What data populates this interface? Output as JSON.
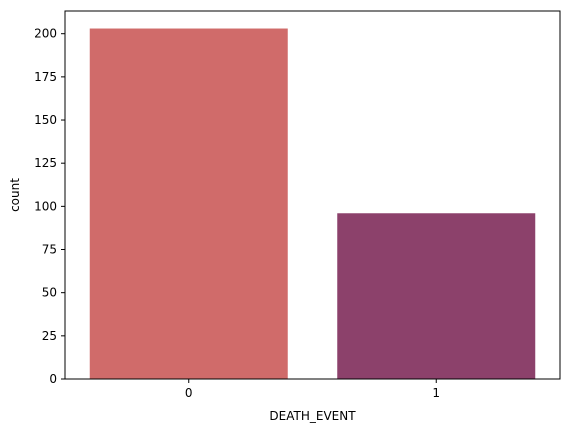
{
  "chart_data": {
    "type": "bar",
    "categories": [
      "0",
      "1"
    ],
    "values": [
      203,
      96
    ],
    "title": "",
    "xlabel": "DEATH_EVENT",
    "ylabel": "count",
    "ylim": [
      0,
      213.15
    ],
    "yticks": [
      0,
      25,
      50,
      75,
      100,
      125,
      150,
      175,
      200
    ],
    "grid": false,
    "legend": "none",
    "colors": [
      "#d06b6a",
      "#8c416b"
    ]
  }
}
